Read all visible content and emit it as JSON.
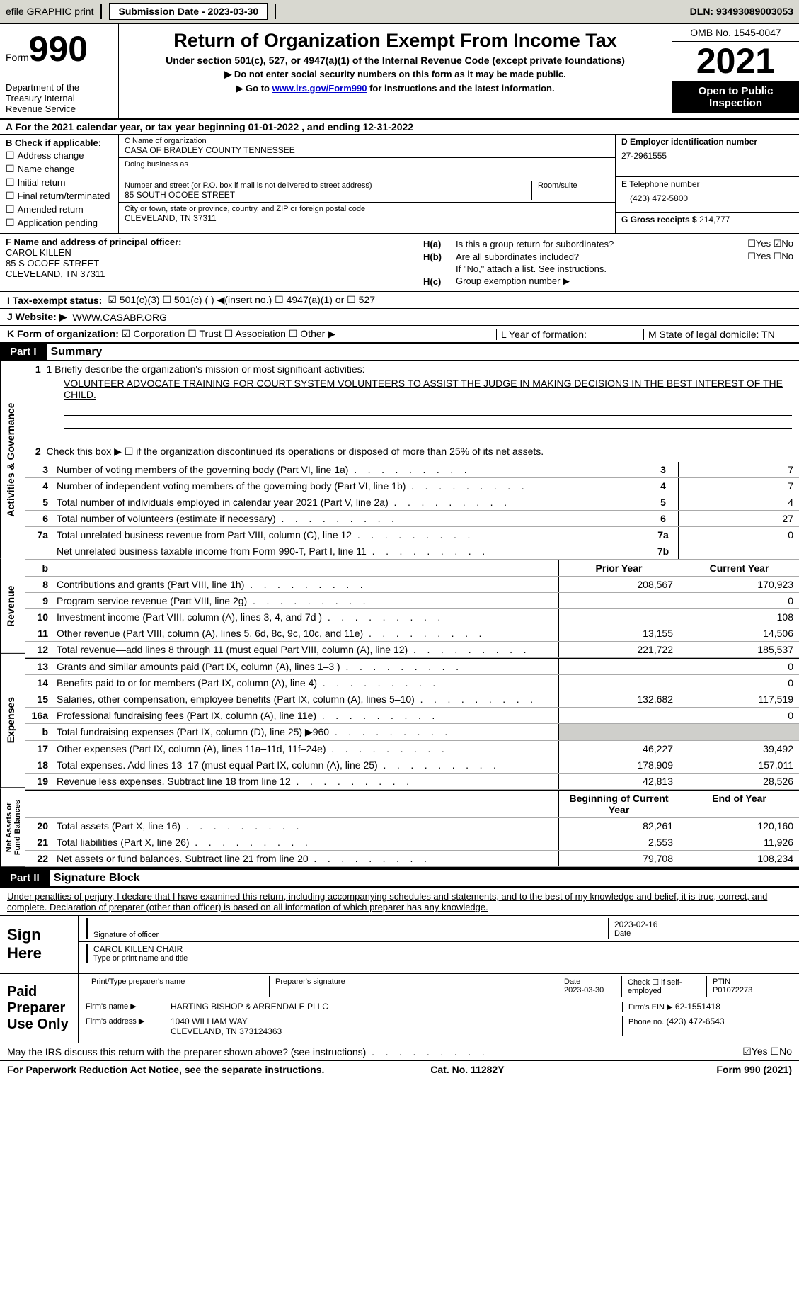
{
  "topbar": {
    "efile": "efile GRAPHIC print",
    "subdate_label": "Submission Date - 2023-03-30",
    "dln": "DLN: 93493089003053"
  },
  "header": {
    "form_label": "Form",
    "form_no": "990",
    "dept": "Department of the Treasury\nInternal Revenue Service",
    "title": "Return of Organization Exempt From Income Tax",
    "subtitle": "Under section 501(c), 527, or 4947(a)(1) of the Internal Revenue Code (except private foundations)",
    "instr1": "Do not enter social security numbers on this form as it may be made public.",
    "instr2_pre": "Go to ",
    "instr2_link": "www.irs.gov/Form990",
    "instr2_post": " for instructions and the latest information.",
    "omb": "OMB No. 1545-0047",
    "year": "2021",
    "open": "Open to Public Inspection"
  },
  "sectionA": "A For the 2021 calendar year, or tax year beginning 01-01-2022    , and ending 12-31-2022",
  "sectionB": {
    "label": "B Check if applicable:",
    "items": [
      "Address change",
      "Name change",
      "Initial return",
      "Final return/terminated",
      "Amended return",
      "Application pending"
    ]
  },
  "sectionC": {
    "name_label": "C Name of organization",
    "name": "CASA OF BRADLEY COUNTY TENNESSEE",
    "dba_label": "Doing business as",
    "addr_label": "Number and street (or P.O. box if mail is not delivered to street address)",
    "addr": "85 SOUTH OCOEE STREET",
    "room_label": "Room/suite",
    "city_label": "City or town, state or province, country, and ZIP or foreign postal code",
    "city": "CLEVELAND, TN  37311"
  },
  "sectionD": {
    "label": "D Employer identification number",
    "value": "27-2961555",
    "e_label": "E Telephone number",
    "e_value": "(423) 472-5800",
    "g_label": "G Gross receipts $",
    "g_value": "214,777"
  },
  "sectionF": {
    "label": "F  Name and address of principal officer:",
    "name": "CAROL KILLEN",
    "addr": "85 S OCOEE STREET",
    "city": "CLEVELAND, TN  37311"
  },
  "sectionH": {
    "a_label": "H(a)",
    "a_text": "Is this a group return for subordinates?",
    "a_answer": "☐Yes  ☑No",
    "b_label": "H(b)",
    "b_text": "Are all subordinates included?",
    "b_answer": "☐Yes  ☐No",
    "b_note": "If \"No,\" attach a list. See instructions.",
    "c_label": "H(c)",
    "c_text": "Group exemption number ▶"
  },
  "sectionI": {
    "label": "I   Tax-exempt status:",
    "opts": "☑ 501(c)(3)     ☐  501(c) (  ) ◀(insert no.)     ☐  4947(a)(1) or   ☐  527"
  },
  "sectionJ": {
    "label": "J   Website: ▶",
    "value": "WWW.CASABP.ORG"
  },
  "sectionK": {
    "label": "K Form of organization:",
    "value": "☑ Corporation  ☐ Trust  ☐ Association  ☐ Other ▶"
  },
  "sectionL": {
    "label": "L Year of formation:"
  },
  "sectionM": {
    "label": "M State of legal domicile: TN"
  },
  "part1": {
    "tag": "Part I",
    "title": "Summary"
  },
  "summary": {
    "q1_label": "1  Briefly describe the organization's mission or most significant activities:",
    "q1_text": "VOLUNTEER ADVOCATE TRAINING FOR COURT SYSTEM VOLUNTEERS TO ASSIST THE JUDGE IN MAKING DECISIONS IN THE BEST INTEREST OF THE CHILD.",
    "q2": "Check this box ▶ ☐  if the organization discontinued its operations or disposed of more than 25% of its net assets.",
    "rows_ag": [
      {
        "n": "3",
        "t": "Number of voting members of the governing body (Part VI, line 1a)",
        "b": "3",
        "v": "7"
      },
      {
        "n": "4",
        "t": "Number of independent voting members of the governing body (Part VI, line 1b)",
        "b": "4",
        "v": "7"
      },
      {
        "n": "5",
        "t": "Total number of individuals employed in calendar year 2021 (Part V, line 2a)",
        "b": "5",
        "v": "4"
      },
      {
        "n": "6",
        "t": "Total number of volunteers (estimate if necessary)",
        "b": "6",
        "v": "27"
      },
      {
        "n": "7a",
        "t": "Total unrelated business revenue from Part VIII, column (C), line 12",
        "b": "7a",
        "v": "0"
      },
      {
        "n": "",
        "t": "Net unrelated business taxable income from Form 990-T, Part I, line 11",
        "b": "7b",
        "v": ""
      }
    ],
    "hdr_prior": "Prior Year",
    "hdr_current": "Current Year",
    "rows_rev": [
      {
        "n": "8",
        "t": "Contributions and grants (Part VIII, line 1h)",
        "p": "208,567",
        "c": "170,923"
      },
      {
        "n": "9",
        "t": "Program service revenue (Part VIII, line 2g)",
        "p": "",
        "c": "0"
      },
      {
        "n": "10",
        "t": "Investment income (Part VIII, column (A), lines 3, 4, and 7d )",
        "p": "",
        "c": "108"
      },
      {
        "n": "11",
        "t": "Other revenue (Part VIII, column (A), lines 5, 6d, 8c, 9c, 10c, and 11e)",
        "p": "13,155",
        "c": "14,506"
      },
      {
        "n": "12",
        "t": "Total revenue—add lines 8 through 11 (must equal Part VIII, column (A), line 12)",
        "p": "221,722",
        "c": "185,537"
      }
    ],
    "rows_exp": [
      {
        "n": "13",
        "t": "Grants and similar amounts paid (Part IX, column (A), lines 1–3 )",
        "p": "",
        "c": "0"
      },
      {
        "n": "14",
        "t": "Benefits paid to or for members (Part IX, column (A), line 4)",
        "p": "",
        "c": "0"
      },
      {
        "n": "15",
        "t": "Salaries, other compensation, employee benefits (Part IX, column (A), lines 5–10)",
        "p": "132,682",
        "c": "117,519"
      },
      {
        "n": "16a",
        "t": "Professional fundraising fees (Part IX, column (A), line 11e)",
        "p": "",
        "c": "0"
      },
      {
        "n": "b",
        "t": "Total fundraising expenses (Part IX, column (D), line 25) ▶960",
        "p": "grey",
        "c": "grey"
      },
      {
        "n": "17",
        "t": "Other expenses (Part IX, column (A), lines 11a–11d, 11f–24e)",
        "p": "46,227",
        "c": "39,492"
      },
      {
        "n": "18",
        "t": "Total expenses. Add lines 13–17 (must equal Part IX, column (A), line 25)",
        "p": "178,909",
        "c": "157,011"
      },
      {
        "n": "19",
        "t": "Revenue less expenses. Subtract line 18 from line 12",
        "p": "42,813",
        "c": "28,526"
      }
    ],
    "hdr_beg": "Beginning of Current Year",
    "hdr_end": "End of Year",
    "rows_na": [
      {
        "n": "20",
        "t": "Total assets (Part X, line 16)",
        "p": "82,261",
        "c": "120,160"
      },
      {
        "n": "21",
        "t": "Total liabilities (Part X, line 26)",
        "p": "2,553",
        "c": "11,926"
      },
      {
        "n": "22",
        "t": "Net assets or fund balances. Subtract line 21 from line 20",
        "p": "79,708",
        "c": "108,234"
      }
    ],
    "vtabs": [
      "Activities & Governance",
      "Revenue",
      "Expenses",
      "Net Assets or Fund Balances"
    ]
  },
  "part2": {
    "tag": "Part II",
    "title": "Signature Block"
  },
  "sig": {
    "declare": "Under penalties of perjury, I declare that I have examined this return, including accompanying schedules and statements, and to the best of my knowledge and belief, it is true, correct, and complete. Declaration of preparer (other than officer) is based on all information of which preparer has any knowledge.",
    "sign_here": "Sign Here",
    "sig_officer": "Signature of officer",
    "date_val": "2023-02-16",
    "date_lbl": "Date",
    "name_title": "CAROL KILLEN  CHAIR",
    "name_title_lbl": "Type or print name and title",
    "paid": "Paid Preparer Use Only",
    "prep_name_lbl": "Print/Type preparer's name",
    "prep_sig_lbl": "Preparer's signature",
    "prep_date_lbl": "Date",
    "prep_date": "2023-03-30",
    "check_lbl": "Check ☐ if self-employed",
    "ptin_lbl": "PTIN",
    "ptin": "P01072273",
    "firm_name_lbl": "Firm's name    ▶",
    "firm_name": "HARTING BISHOP & ARRENDALE PLLC",
    "firm_ein_lbl": "Firm's EIN ▶",
    "firm_ein": "62-1551418",
    "firm_addr_lbl": "Firm's address ▶",
    "firm_addr": "1040 WILLIAM WAY",
    "firm_city": "CLEVELAND, TN  373124363",
    "phone_lbl": "Phone no.",
    "phone": "(423) 472-6543",
    "discuss": "May the IRS discuss this return with the preparer shown above? (see instructions)",
    "discuss_ans": "☑Yes  ☐No"
  },
  "footer": {
    "l": "For Paperwork Reduction Act Notice, see the separate instructions.",
    "c": "Cat. No. 11282Y",
    "r": "Form 990 (2021)"
  }
}
